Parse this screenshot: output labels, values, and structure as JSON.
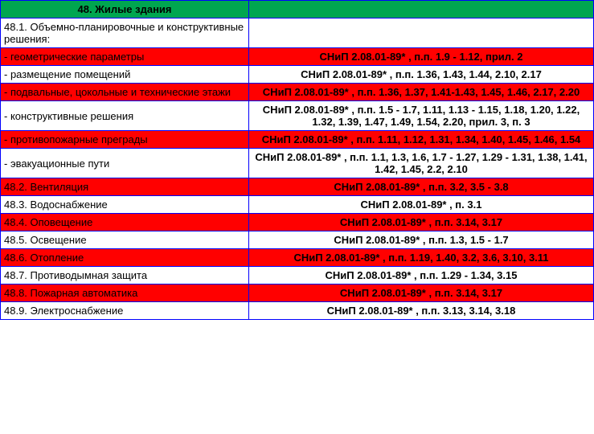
{
  "header": {
    "title": "48. Жилые здания"
  },
  "rows": [
    {
      "left": "48.1. Объемно-планировочные и конструктивные решения:",
      "right": "",
      "cls": "bg-white"
    },
    {
      "left": "- геометрические параметры",
      "right": "СНиП 2.08.01-89* , п.п. 1.9 - 1.12, прил. 2",
      "cls": "bg-red"
    },
    {
      "left": "- размещение помещений",
      "right": "СНиП 2.08.01-89* , п.п. 1.36, 1.43, 1.44, 2.10, 2.17",
      "cls": "bg-white"
    },
    {
      "left": "- подвальные, цокольные и технические этажи",
      "right": "СНиП 2.08.01-89* , п.п. 1.36, 1.37, 1.41-1.43, 1.45, 1.46, 2.17, 2.20",
      "cls": "bg-red"
    },
    {
      "left": "- конструктивные решения",
      "right": "СНиП 2.08.01-89* , п.п. 1.5 - 1.7, 1.11, 1.13 - 1.15, 1.18, 1.20, 1.22, 1.32, 1.39, 1.47, 1.49, 1.54, 2.20, прил. 3, п. 3",
      "cls": "bg-white"
    },
    {
      "left": "- противопожарные преграды",
      "right": "СНиП 2.08.01-89* , п.п. 1.11, 1.12, 1.31, 1.34, 1.40, 1.45, 1.46, 1.54",
      "cls": "bg-red"
    },
    {
      "left": "- эвакуационные пути",
      "right": "СНиП 2.08.01-89* , п.п. 1.1, 1.3, 1.6, 1.7 - 1.27, 1.29 - 1.31, 1.38, 1.41, 1.42, 1.45, 2.2, 2.10",
      "cls": "bg-white"
    },
    {
      "left": "48.2. Вентиляция",
      "right": "СНиП 2.08.01-89* , п.п. 3.2, 3.5 - 3.8",
      "cls": "bg-red"
    },
    {
      "left": "48.3. Водоснабжение",
      "right": "СНиП 2.08.01-89* , п. 3.1",
      "cls": "bg-white"
    },
    {
      "left": "48.4. Оповещение",
      "right": "СНиП 2.08.01-89* , п.п. 3.14, 3.17",
      "cls": "bg-red"
    },
    {
      "left": "48.5. Освещение",
      "right": "СНиП 2.08.01-89* , п.п. 1.3, 1.5 - 1.7",
      "cls": "bg-white"
    },
    {
      "left": "48.6. Отопление",
      "right": "СНиП 2.08.01-89* , п.п. 1.19, 1.40, 3.2, 3.6, 3.10, 3.11",
      "cls": "bg-red"
    },
    {
      "left": "48.7. Противодымная защита",
      "right": "СНиП 2.08.01-89* , п.п. 1.29 - 1.34, 3.15",
      "cls": "bg-white"
    },
    {
      "left": "48.8. Пожарная автоматика",
      "right": "СНиП 2.08.01-89* , п.п. 3.14, 3.17",
      "cls": "bg-red"
    },
    {
      "left": "48.9. Электроснабжение",
      "right": "СНиП 2.08.01-89* , п.п. 3.13, 3.14, 3.18",
      "cls": "bg-white"
    }
  ]
}
